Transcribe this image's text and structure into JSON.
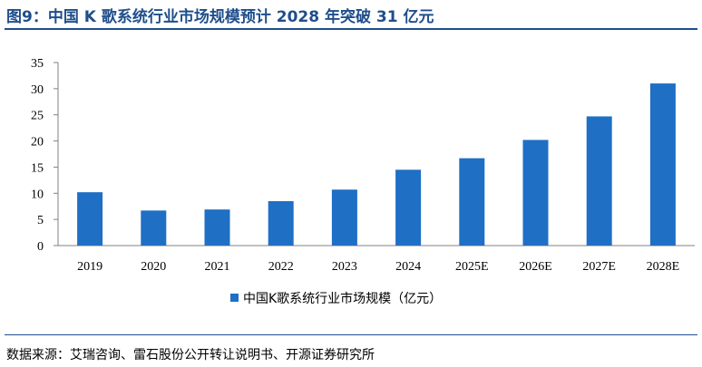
{
  "figure": {
    "title": "图9：中国 K 歌系统行业市场规模预计 2028 年突破 31 亿元",
    "source": "数据来源：艾瑞咨询、雷石股份公开转让说明书、开源证券研究所"
  },
  "chart_data": {
    "type": "bar",
    "categories": [
      "2019",
      "2020",
      "2021",
      "2022",
      "2023",
      "2024",
      "2025E",
      "2026E",
      "2027E",
      "2028E"
    ],
    "series": [
      {
        "name": "中国K歌系统行业市场规模（亿元）",
        "values": [
          10.2,
          6.7,
          6.9,
          8.5,
          10.7,
          14.5,
          16.7,
          20.2,
          24.7,
          31.0
        ],
        "color": "#1f6fc5"
      }
    ],
    "yticks": [
      0,
      5,
      10,
      15,
      20,
      25,
      30,
      35
    ],
    "ylim": [
      0,
      35
    ],
    "grid": false,
    "legend": "bottom-center"
  }
}
